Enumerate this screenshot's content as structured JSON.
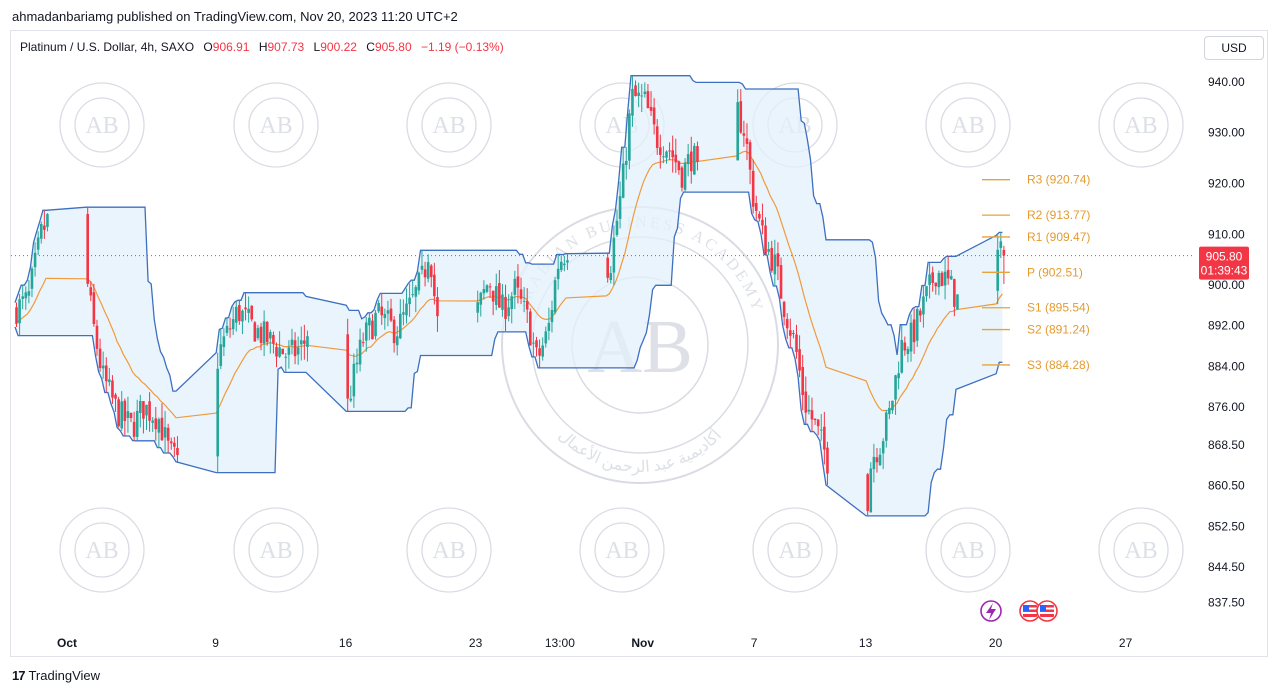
{
  "header": {
    "published_by": "ahmadanbariamg published on TradingView.com, Nov 20, 2023 11:20 UTC+2"
  },
  "legend": {
    "symbol": "Platinum / U.S. Dollar, 4h, SAXO",
    "open_label": "O",
    "open": "906.91",
    "high_label": "H",
    "high": "907.73",
    "low_label": "L",
    "low": "900.22",
    "close_label": "C",
    "close": "905.80",
    "change": "−1.19 (−0.13%)"
  },
  "currency_button": "USD",
  "price_tag": {
    "price": "905.80",
    "countdown": "01:39:43"
  },
  "footer": {
    "logo_glyph": "17",
    "brand": "TradingView"
  },
  "watermark": {
    "initials": "AB",
    "top_text": "ARABIAN BUSINESS ACADEMY",
    "arabic_text": "أكاديمية عبد الرحمن الأعمال"
  },
  "colors": {
    "up": "#26a69a",
    "down": "#f23645",
    "channel": "#3d6fc2",
    "channel_fill": "#e3f0fb",
    "basis": "#f09a3c",
    "pivot": "#e5a33a",
    "badge_purple": "#9c27b0"
  },
  "chart_data": {
    "type": "candlestick",
    "title": "Platinum / U.S. Dollar, 4h, SAXO",
    "ylim": [
      834,
      962
    ],
    "y_ticks": [
      837.5,
      844.5,
      852.5,
      860.5,
      868.5,
      876.0,
      884.0,
      892.0,
      900.0,
      910.0,
      920.0,
      930.0,
      940.0
    ],
    "y_tick_labels": [
      "837.50",
      "844.50",
      "852.50",
      "860.50",
      "868.50",
      "876.00",
      "884.00",
      "892.00",
      "900.00",
      "910.00",
      "920.00",
      "930.00",
      "940.00"
    ],
    "x_tick_labels": [
      {
        "label": "Oct",
        "bold": true,
        "day": 0
      },
      {
        "label": "9",
        "bold": false,
        "day": 8
      },
      {
        "label": "16",
        "bold": false,
        "day": 15
      },
      {
        "label": "23",
        "bold": false,
        "day": 22
      },
      {
        "label": "13:00",
        "bold": false,
        "day": 26.54
      },
      {
        "label": "Nov",
        "bold": true,
        "day": 31
      },
      {
        "label": "7",
        "bold": false,
        "day": 37
      },
      {
        "label": "13",
        "bold": false,
        "day": 43
      },
      {
        "label": "20",
        "bold": false,
        "day": 50
      },
      {
        "label": "27",
        "bold": false,
        "day": 57
      }
    ],
    "last_price": 905.8,
    "pivots": [
      {
        "name": "R3",
        "value": 920.74
      },
      {
        "name": "R2",
        "value": 913.77
      },
      {
        "name": "R1",
        "value": 909.47
      },
      {
        "name": "P",
        "value": 902.51
      },
      {
        "name": "S1",
        "value": 895.54
      },
      {
        "name": "S2",
        "value": 891.24
      },
      {
        "name": "S3",
        "value": 884.28
      }
    ],
    "path": [
      [
        -2.8,
        895
      ],
      [
        -2.0,
        897
      ],
      [
        -1.3,
        910
      ],
      [
        -0.4,
        917
      ],
      [
        0.2,
        906
      ],
      [
        0.7,
        913
      ],
      [
        1.5,
        892
      ],
      [
        2.0,
        882
      ],
      [
        2.8,
        875
      ],
      [
        3.6,
        872
      ],
      [
        4.2,
        876
      ],
      [
        5.0,
        874
      ],
      [
        5.6,
        867
      ],
      [
        6.3,
        864
      ],
      [
        6.8,
        860
      ],
      [
        7.3,
        866
      ],
      [
        7.8,
        880
      ],
      [
        8.4,
        888
      ],
      [
        9.3,
        895
      ],
      [
        10.0,
        892
      ],
      [
        11.0,
        889
      ],
      [
        12.0,
        886
      ],
      [
        12.8,
        888
      ],
      [
        13.3,
        894
      ],
      [
        13.8,
        882
      ],
      [
        14.3,
        872
      ],
      [
        14.9,
        871
      ],
      [
        15.4,
        880
      ],
      [
        16.0,
        889
      ],
      [
        16.8,
        894
      ],
      [
        17.8,
        891
      ],
      [
        18.6,
        896
      ],
      [
        19.3,
        902
      ],
      [
        19.6,
        908
      ],
      [
        20.0,
        893
      ],
      [
        20.6,
        887
      ],
      [
        21.3,
        884
      ],
      [
        22.0,
        893
      ],
      [
        22.8,
        901
      ],
      [
        23.5,
        895
      ],
      [
        24.2,
        899
      ],
      [
        24.9,
        893
      ],
      [
        25.4,
        885
      ],
      [
        26.0,
        891
      ],
      [
        26.5,
        904
      ],
      [
        27.3,
        909
      ],
      [
        28.0,
        905
      ],
      [
        28.7,
        908
      ],
      [
        29.3,
        903
      ],
      [
        30.0,
        920
      ],
      [
        30.5,
        937
      ],
      [
        31.2,
        936
      ],
      [
        31.8,
        929
      ],
      [
        32.5,
        927
      ],
      [
        33.2,
        922
      ],
      [
        33.8,
        926
      ],
      [
        34.3,
        916
      ],
      [
        34.8,
        928
      ],
      [
        35.5,
        926
      ],
      [
        36.0,
        936
      ],
      [
        36.6,
        930
      ],
      [
        37.0,
        918
      ],
      [
        37.5,
        910
      ],
      [
        38.2,
        904
      ],
      [
        38.7,
        896
      ],
      [
        39.3,
        888
      ],
      [
        39.8,
        877
      ],
      [
        40.4,
        872
      ],
      [
        41.0,
        866
      ],
      [
        41.6,
        858
      ],
      [
        42.0,
        852
      ],
      [
        42.5,
        846
      ],
      [
        43.0,
        850
      ],
      [
        43.4,
        866
      ],
      [
        43.9,
        869
      ],
      [
        44.4,
        875
      ],
      [
        45.0,
        888
      ],
      [
        45.6,
        890
      ],
      [
        46.3,
        897
      ],
      [
        46.9,
        903
      ],
      [
        47.6,
        900
      ],
      [
        48.2,
        896
      ],
      [
        48.8,
        908
      ],
      [
        49.3,
        896
      ],
      [
        49.8,
        905
      ],
      [
        50.3,
        906
      ],
      [
        50.5,
        905.8
      ]
    ]
  }
}
